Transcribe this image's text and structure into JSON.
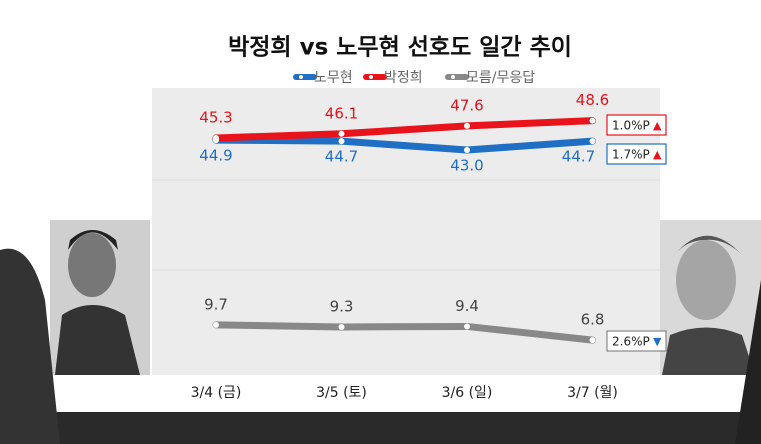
{
  "chart_data": {
    "type": "line",
    "title": "박정희 vs 노무현 선호도 일간 추이",
    "categories": [
      "3/4 (금)",
      "3/5 (토)",
      "3/6 (일)",
      "3/7 (월)"
    ],
    "series": [
      {
        "name": "노무현",
        "color": "#1f6fc5",
        "values": [
          44.9,
          44.7,
          43.0,
          44.7
        ],
        "value_labels": [
          "44.9",
          "44.7",
          "43.0",
          "44.7"
        ]
      },
      {
        "name": "박정희",
        "color": "#e8131b",
        "values": [
          45.3,
          46.1,
          47.6,
          48.6
        ],
        "value_labels": [
          "45.3",
          "46.1",
          "47.6",
          "48.6"
        ]
      },
      {
        "name": "모름/무응답",
        "color": "#888888",
        "values": [
          9.7,
          9.3,
          9.4,
          6.8
        ],
        "value_labels": [
          "9.7",
          "9.3",
          "9.4",
          "6.8"
        ]
      }
    ],
    "annotations": [
      {
        "text": "1.0%P",
        "arrow": "▲",
        "color": "#e8131b",
        "arrow_color": "#e8131b"
      },
      {
        "text": "1.7%P",
        "arrow": "▲",
        "color": "#1f6fc5",
        "arrow_color": "#e8131b"
      },
      {
        "text": "2.6%P",
        "arrow": "▼",
        "color": "#888888",
        "arrow_color": "#1f6fc5"
      }
    ]
  }
}
